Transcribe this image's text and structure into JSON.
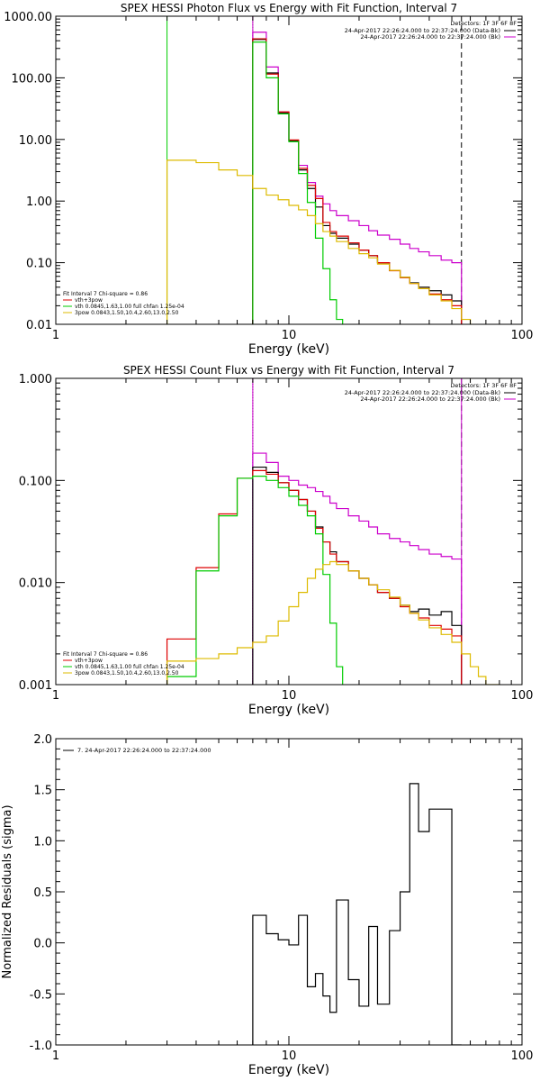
{
  "chart_data": [
    {
      "type": "line",
      "title": "SPEX HESSI Photon Flux vs Energy with Fit Function, Interval 7",
      "xlabel": "Energy (keV)",
      "ylabel": "",
      "xscale": "log",
      "yscale": "log",
      "xlim": [
        1,
        100
      ],
      "ylim": [
        0.01,
        1000
      ],
      "xticks": [
        "1",
        "10",
        "100"
      ],
      "yticks": [
        "0.01",
        "0.10",
        "1.00",
        "10.00",
        "100.00",
        "1000.00"
      ],
      "detectors_label": "Detectors: 1F 3F 6F 8F",
      "legend_lines": [
        {
          "text": "24-Apr-2017 22:26:24.000 to 22:37:24.000 (Data-Bk)",
          "color": "#000000"
        },
        {
          "text": "24-Apr-2017 22:26:24.000 to 22:37:24.000 (Bk)",
          "color": "#cc00cc"
        }
      ],
      "fit_header": "Fit Interval 7   Chi-square = 0.86",
      "fit_lines": [
        {
          "text": "vth+3pow",
          "color": "#dd0000"
        },
        {
          "text": "vth 0.0845,1.63,1.00  full chfan 1.25e-04",
          "color": "#00cc00"
        },
        {
          "text": "3pow 0.0843,1.50,10.4,2.60,13.0,2.50",
          "color": "#ddbb00"
        }
      ],
      "vlines": [
        {
          "x": 3.0,
          "color": "#00cc00",
          "style": "solid"
        },
        {
          "x": 7.0,
          "color": "#00aa00",
          "style": "dotted"
        },
        {
          "x": 7.0,
          "color": "#cc00cc",
          "style": "solid"
        },
        {
          "x": 55.0,
          "color": "#000000",
          "style": "dashed"
        }
      ],
      "series": [
        {
          "color": "#cc00cc",
          "edges": [
            7,
            8,
            9,
            10,
            11,
            12,
            13,
            14,
            15,
            16,
            18,
            20,
            22,
            24,
            27,
            30,
            33,
            36,
            40,
            45,
            50,
            55
          ],
          "values": [
            550,
            150,
            28,
            9.5,
            3.8,
            2.0,
            1.2,
            0.9,
            0.7,
            0.58,
            0.48,
            0.4,
            0.33,
            0.28,
            0.24,
            0.2,
            0.17,
            0.15,
            0.13,
            0.11,
            0.1
          ]
        },
        {
          "color": "#000000",
          "edges": [
            7,
            8,
            9,
            10,
            11,
            12,
            13,
            14,
            15,
            16,
            18,
            20,
            22,
            24,
            27,
            30,
            33,
            36,
            40,
            45,
            50,
            55
          ],
          "values": [
            420,
            120,
            27,
            9.5,
            3.2,
            1.6,
            0.8,
            0.4,
            0.3,
            0.25,
            0.2,
            0.16,
            0.13,
            0.1,
            0.075,
            0.058,
            0.047,
            0.04,
            0.035,
            0.03,
            0.024
          ]
        },
        {
          "color": "#dd0000",
          "edges": [
            7,
            8,
            9,
            10,
            11,
            12,
            13,
            14,
            15,
            16,
            18,
            20,
            22,
            24,
            27,
            30,
            33,
            36,
            40,
            45,
            50,
            55
          ],
          "values": [
            430,
            115,
            28,
            9.8,
            3.4,
            1.8,
            1.1,
            0.45,
            0.32,
            0.27,
            0.21,
            0.16,
            0.13,
            0.1,
            0.074,
            0.057,
            0.046,
            0.038,
            0.031,
            0.025,
            0.02
          ]
        },
        {
          "color": "#00cc00",
          "edges": [
            7,
            8,
            9,
            10,
            11,
            12,
            13,
            14,
            15,
            16,
            17
          ],
          "values": [
            380,
            100,
            26,
            9.2,
            2.8,
            0.95,
            0.25,
            0.08,
            0.025,
            0.012
          ]
        },
        {
          "color": "#ddbb00",
          "edges": [
            3,
            4,
            5,
            6,
            7,
            8,
            9,
            10,
            11,
            12,
            13,
            14,
            15,
            16,
            18,
            20,
            22,
            24,
            27,
            30,
            33,
            36,
            40,
            45,
            50,
            55,
            60
          ],
          "values": [
            4.6,
            4.2,
            3.2,
            2.6,
            1.6,
            1.25,
            1.05,
            0.85,
            0.72,
            0.58,
            0.43,
            0.32,
            0.27,
            0.22,
            0.17,
            0.14,
            0.12,
            0.095,
            0.075,
            0.058,
            0.046,
            0.038,
            0.03,
            0.024,
            0.018,
            0.012
          ]
        }
      ]
    },
    {
      "type": "line",
      "title": "SPEX HESSI Count Flux vs Energy with Fit Function, Interval 7",
      "xlabel": "Energy (keV)",
      "ylabel": "",
      "xscale": "log",
      "yscale": "log",
      "xlim": [
        1,
        100
      ],
      "ylim": [
        0.001,
        1
      ],
      "xticks": [
        "1",
        "10",
        "100"
      ],
      "yticks": [
        "0.001",
        "0.010",
        "0.100",
        "1.000"
      ],
      "detectors_label": "Detectors: 1F 3F 6F 8F",
      "legend_lines": [
        {
          "text": "24-Apr-2017 22:26:24.000 to 22:37:24.000 (Data-Bk)",
          "color": "#000000"
        },
        {
          "text": "24-Apr-2017 22:26:24.000 to 22:37:24.000 (Bk)",
          "color": "#cc00cc"
        }
      ],
      "fit_header": "Fit Interval 7   Chi-square = 0.86",
      "fit_lines": [
        {
          "text": "vth+3pow",
          "color": "#dd0000"
        },
        {
          "text": "vth 0.0845,1.63,1.00  full chfan 1.25e-04",
          "color": "#00cc00"
        },
        {
          "text": "3pow 0.0843,1.50,10.4,2.60,13.0,2.50",
          "color": "#ddbb00"
        }
      ],
      "vlines": [
        {
          "x": 7.0,
          "color": "#000000",
          "style": "dotted"
        },
        {
          "x": 7.0,
          "color": "#cc00cc",
          "style": "solid"
        },
        {
          "x": 55.0,
          "color": "#000000",
          "style": "dashed"
        },
        {
          "x": 55.0,
          "color": "#cc00cc",
          "style": "solid"
        }
      ],
      "series": [
        {
          "color": "#cc00cc",
          "edges": [
            7,
            8,
            9,
            10,
            11,
            12,
            13,
            14,
            15,
            16,
            18,
            20,
            22,
            24,
            27,
            30,
            33,
            36,
            40,
            45,
            50,
            55
          ],
          "values": [
            0.185,
            0.15,
            0.11,
            0.1,
            0.09,
            0.085,
            0.078,
            0.07,
            0.06,
            0.053,
            0.045,
            0.04,
            0.035,
            0.03,
            0.027,
            0.025,
            0.023,
            0.021,
            0.019,
            0.018,
            0.017
          ]
        },
        {
          "color": "#000000",
          "edges": [
            7,
            8,
            9,
            10,
            11,
            12,
            13,
            14,
            15,
            16,
            18,
            20,
            22,
            24,
            27,
            30,
            33,
            36,
            40,
            45,
            50,
            55
          ],
          "values": [
            0.135,
            0.12,
            0.095,
            0.08,
            0.065,
            0.05,
            0.035,
            0.025,
            0.02,
            0.016,
            0.013,
            0.011,
            0.0095,
            0.008,
            0.007,
            0.006,
            0.0052,
            0.0055,
            0.0048,
            0.0052,
            0.0038
          ]
        },
        {
          "color": "#dd0000",
          "edges": [
            3,
            4,
            5,
            6,
            7,
            8,
            9,
            10,
            11,
            12,
            13,
            14,
            15,
            16,
            18,
            20,
            22,
            24,
            27,
            30,
            33,
            36,
            40,
            45,
            50,
            55
          ],
          "values": [
            0.0028,
            0.014,
            0.047,
            0.105,
            0.125,
            0.115,
            0.095,
            0.08,
            0.065,
            0.05,
            0.034,
            0.025,
            0.019,
            0.016,
            0.013,
            0.011,
            0.0095,
            0.008,
            0.007,
            0.0058,
            0.005,
            0.0045,
            0.0038,
            0.0035,
            0.003
          ]
        },
        {
          "color": "#00cc00",
          "edges": [
            3,
            4,
            5,
            6,
            7,
            8,
            9,
            10,
            11,
            12,
            13,
            14,
            15,
            16,
            17
          ],
          "values": [
            0.0012,
            0.013,
            0.045,
            0.105,
            0.11,
            0.1,
            0.085,
            0.07,
            0.057,
            0.045,
            0.03,
            0.012,
            0.004,
            0.0015
          ]
        },
        {
          "color": "#ddbb00",
          "edges": [
            3,
            4,
            5,
            6,
            7,
            8,
            9,
            10,
            11,
            12,
            13,
            14,
            15,
            16,
            18,
            20,
            22,
            24,
            27,
            30,
            33,
            36,
            40,
            45,
            50,
            55,
            60,
            65,
            70,
            80
          ],
          "values": [
            0.0017,
            0.0018,
            0.002,
            0.0023,
            0.0026,
            0.003,
            0.0042,
            0.0058,
            0.008,
            0.011,
            0.0135,
            0.015,
            0.016,
            0.015,
            0.013,
            0.011,
            0.0095,
            0.0085,
            0.0072,
            0.006,
            0.005,
            0.0043,
            0.0036,
            0.0031,
            0.0026,
            0.002,
            0.0015,
            0.0012,
            0.001
          ]
        }
      ]
    },
    {
      "type": "line",
      "title": "",
      "xlabel": "Energy (keV)",
      "ylabel": "Normalized Residuals (sigma)",
      "xscale": "log",
      "yscale": "linear",
      "xlim": [
        1,
        100
      ],
      "ylim": [
        -1.0,
        2.0
      ],
      "xticks": [
        "1",
        "10",
        "100"
      ],
      "yticks": [
        "-1.0",
        "-0.5",
        "0.0",
        "0.5",
        "1.0",
        "1.5",
        "2.0"
      ],
      "legend_lines": [
        {
          "text": "7. 24-Apr-2017 22:26:24.000 to 22:37:24.000",
          "color": "#000000"
        }
      ],
      "series": [
        {
          "color": "#000000",
          "edges": [
            7,
            8,
            9,
            10,
            11,
            12,
            13,
            14,
            15,
            16,
            18,
            20,
            22,
            24,
            27,
            30,
            33,
            36,
            40,
            45,
            50,
            55
          ],
          "values": [
            0.27,
            0.09,
            0.03,
            -0.02,
            0.27,
            -0.43,
            -0.3,
            -0.52,
            -0.68,
            0.42,
            -0.36,
            -0.62,
            0.16,
            -0.6,
            0.12,
            0.5,
            1.56,
            1.09,
            1.31,
            1.31,
            -1.0
          ]
        }
      ]
    }
  ]
}
